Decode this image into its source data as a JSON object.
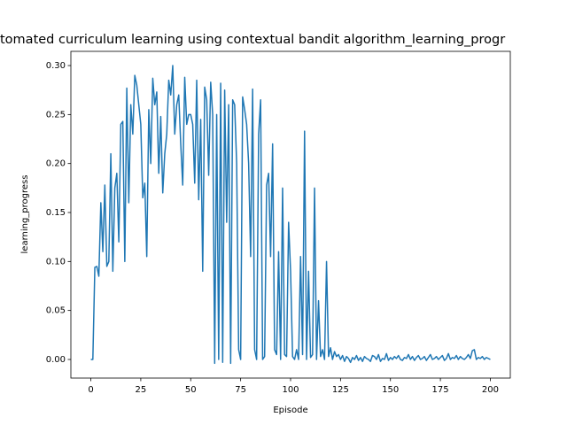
{
  "chart_data": {
    "type": "line",
    "title": "tomated curriculum learning using contextual bandit algorithm_learning_progr",
    "xlabel": "Episode",
    "ylabel": "learning_progress",
    "color": "#1f77b4",
    "x": [
      0,
      1,
      2,
      3,
      4,
      5,
      6,
      7,
      8,
      9,
      10,
      11,
      12,
      13,
      14,
      15,
      16,
      17,
      18,
      19,
      20,
      21,
      22,
      23,
      24,
      25,
      26,
      27,
      28,
      29,
      30,
      31,
      32,
      33,
      34,
      35,
      36,
      37,
      38,
      39,
      40,
      41,
      42,
      43,
      44,
      45,
      46,
      47,
      48,
      49,
      50,
      51,
      52,
      53,
      54,
      55,
      56,
      57,
      58,
      59,
      60,
      61,
      62,
      63,
      64,
      65,
      66,
      67,
      68,
      69,
      70,
      71,
      72,
      73,
      74,
      75,
      76,
      77,
      78,
      79,
      80,
      81,
      82,
      83,
      84,
      85,
      86,
      87,
      88,
      89,
      90,
      91,
      92,
      93,
      94,
      95,
      96,
      97,
      98,
      99,
      100,
      101,
      102,
      103,
      104,
      105,
      106,
      107,
      108,
      109,
      110,
      111,
      112,
      113,
      114,
      115,
      116,
      117,
      118,
      119,
      120,
      121,
      122,
      123,
      124,
      125,
      126,
      127,
      128,
      129,
      130,
      131,
      132,
      133,
      134,
      135,
      136,
      137,
      138,
      139,
      140,
      141,
      142,
      143,
      144,
      145,
      146,
      147,
      148,
      149,
      150,
      151,
      152,
      153,
      154,
      155,
      156,
      157,
      158,
      159,
      160,
      161,
      162,
      163,
      164,
      165,
      166,
      167,
      168,
      169,
      170,
      171,
      172,
      173,
      174,
      175,
      176,
      177,
      178,
      179,
      180,
      181,
      182,
      183,
      184,
      185,
      186,
      187,
      188,
      189,
      190,
      191,
      192,
      193,
      194,
      195,
      196,
      197,
      198,
      199,
      200
    ],
    "values": [
      0,
      0,
      0.094,
      0.095,
      0.085,
      0.16,
      0.11,
      0.178,
      0.095,
      0.1,
      0.21,
      0.09,
      0.175,
      0.19,
      0.12,
      0.24,
      0.243,
      0.1,
      0.277,
      0.16,
      0.26,
      0.23,
      0.29,
      0.28,
      0.26,
      0.24,
      0.165,
      0.18,
      0.105,
      0.255,
      0.2,
      0.287,
      0.26,
      0.273,
      0.19,
      0.248,
      0.17,
      0.21,
      0.23,
      0.285,
      0.27,
      0.3,
      0.23,
      0.26,
      0.27,
      0.22,
      0.178,
      0.288,
      0.24,
      0.25,
      0.25,
      0.24,
      0.18,
      0.285,
      0.163,
      0.245,
      0.09,
      0.278,
      0.265,
      0.188,
      0.283,
      0.25,
      -0.004,
      0.25,
      0,
      0.282,
      -0.003,
      0.275,
      0.14,
      0.26,
      -0.004,
      0.265,
      0.26,
      0.2,
      0.01,
      0,
      0.268,
      0.255,
      0.24,
      0.2,
      0.105,
      0.276,
      0.01,
      0,
      0.23,
      0.265,
      0,
      0.003,
      0.178,
      0.19,
      0.105,
      0.22,
      0.01,
      0.005,
      0.11,
      0,
      0.175,
      0.005,
      0.003,
      0.14,
      0.09,
      0.003,
      0,
      0.01,
      0,
      0.105,
      0.005,
      0.233,
      0,
      0.09,
      0.002,
      0.005,
      0.175,
      0,
      0.06,
      0.003,
      0.01,
      0,
      0.1,
      0.003,
      0.012,
      0,
      0.008,
      0.003,
      0.005,
      0,
      0.004,
      -0.002,
      0.003,
      0.001,
      -0.003,
      0.002,
      0,
      0.004,
      -0.001,
      0.002,
      -0.002,
      0.003,
      0.001,
      0,
      -0.002,
      0.004,
      0.003,
      0,
      0.005,
      -0.002,
      0.001,
      0,
      0.006,
      -0.001,
      0.002,
      0,
      0.003,
      0.001,
      0.004,
      0,
      -0.001,
      0.002,
      0.001,
      0.005,
      0,
      0.003,
      -0.001,
      0.002,
      0.004,
      0,
      0.001,
      0.003,
      -0.001,
      0.002,
      0.005,
      0,
      0.001,
      0.003,
      0,
      0.002,
      0.004,
      -0.001,
      0.001,
      0.006,
      0,
      0.002,
      0.001,
      0.004,
      0,
      0.003,
      0.001,
      0,
      0.002,
      0.005,
      0.001,
      0.009,
      0.01,
      0,
      0.002,
      0.001,
      0.003,
      0,
      0.002,
      0.001,
      0
    ],
    "xlim": [
      -10,
      210
    ],
    "ylim": [
      -0.019,
      0.3145
    ],
    "xticks": [
      0,
      25,
      50,
      75,
      100,
      125,
      150,
      175,
      200
    ],
    "yticks": [
      {
        "value": 0,
        "label": "0.00"
      },
      {
        "value": 0.05,
        "label": "0.05"
      },
      {
        "value": 0.1,
        "label": "0.10"
      },
      {
        "value": 0.15,
        "label": "0.15"
      },
      {
        "value": 0.2,
        "label": "0.20"
      },
      {
        "value": 0.25,
        "label": "0.25"
      },
      {
        "value": 0.3,
        "label": "0.30"
      }
    ],
    "grid": false
  }
}
